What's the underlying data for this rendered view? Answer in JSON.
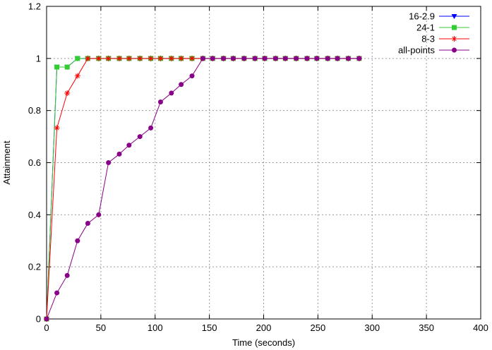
{
  "chart_data": {
    "type": "line",
    "xlabel": "Time (seconds)",
    "ylabel": "Attainment",
    "xlim": [
      0,
      400
    ],
    "ylim": [
      0,
      1.2
    ],
    "x_ticks": [
      "0",
      "50",
      "100",
      "150",
      "200",
      "250",
      "300",
      "350",
      "400"
    ],
    "y_ticks": [
      "0",
      "0.2",
      "0.4",
      "0.6",
      "0.8",
      "1",
      "1.2"
    ],
    "grid": true,
    "legend_position": "top-right",
    "series": [
      {
        "name": "16-2.9",
        "color": "#0000ff",
        "marker": "triangle-down",
        "x": [
          0,
          9.5,
          19,
          28.5,
          38,
          48,
          57,
          67,
          76,
          86,
          96,
          105,
          115,
          124,
          134,
          144,
          153,
          163,
          172,
          182,
          192,
          201,
          211,
          220,
          230,
          240,
          249,
          259,
          268,
          278,
          288
        ],
        "y": [
          0,
          0.967,
          0.967,
          1,
          1,
          1,
          1,
          1,
          1,
          1,
          1,
          1,
          1,
          1,
          1,
          1,
          1,
          1,
          1,
          1,
          1,
          1,
          1,
          1,
          1,
          1,
          1,
          1,
          1,
          1,
          1
        ]
      },
      {
        "name": "24-1",
        "color": "#33cc33",
        "marker": "square",
        "x": [
          0,
          9.5,
          19,
          28.5,
          38,
          48,
          57,
          67,
          76,
          86,
          96,
          105,
          115,
          124,
          134,
          144,
          153,
          163,
          172,
          182,
          192,
          201,
          211,
          220,
          230,
          240,
          249,
          259,
          268,
          278,
          288
        ],
        "y": [
          0,
          0.967,
          0.967,
          1,
          1,
          1,
          1,
          1,
          1,
          1,
          1,
          1,
          1,
          1,
          1,
          1,
          1,
          1,
          1,
          1,
          1,
          1,
          1,
          1,
          1,
          1,
          1,
          1,
          1,
          1,
          1
        ]
      },
      {
        "name": "8-3",
        "color": "#ff0000",
        "marker": "asterisk",
        "x": [
          0,
          9.5,
          19,
          28.5,
          38,
          48,
          57,
          67,
          76,
          86,
          96,
          105,
          115,
          124,
          134,
          144,
          153,
          163,
          172,
          182,
          192,
          201,
          211,
          220,
          230,
          240,
          249,
          259,
          268,
          278,
          288
        ],
        "y": [
          0,
          0.733,
          0.867,
          0.933,
          1,
          1,
          1,
          1,
          1,
          1,
          1,
          1,
          1,
          1,
          1,
          1,
          1,
          1,
          1,
          1,
          1,
          1,
          1,
          1,
          1,
          1,
          1,
          1,
          1,
          1,
          1
        ]
      },
      {
        "name": "all-points",
        "color": "#880088",
        "marker": "circle",
        "x": [
          0,
          9.5,
          19,
          28.5,
          38,
          48,
          57,
          67,
          76,
          86,
          96,
          105,
          115,
          124,
          134,
          144,
          153,
          163,
          172,
          182,
          192,
          201,
          211,
          220,
          230,
          240,
          249,
          259,
          268,
          278,
          288
        ],
        "y": [
          0,
          0.1,
          0.167,
          0.3,
          0.367,
          0.4,
          0.6,
          0.633,
          0.667,
          0.7,
          0.733,
          0.833,
          0.867,
          0.9,
          0.933,
          1,
          1,
          1,
          1,
          1,
          1,
          1,
          1,
          1,
          1,
          1,
          1,
          1,
          1,
          1,
          1
        ]
      }
    ]
  }
}
